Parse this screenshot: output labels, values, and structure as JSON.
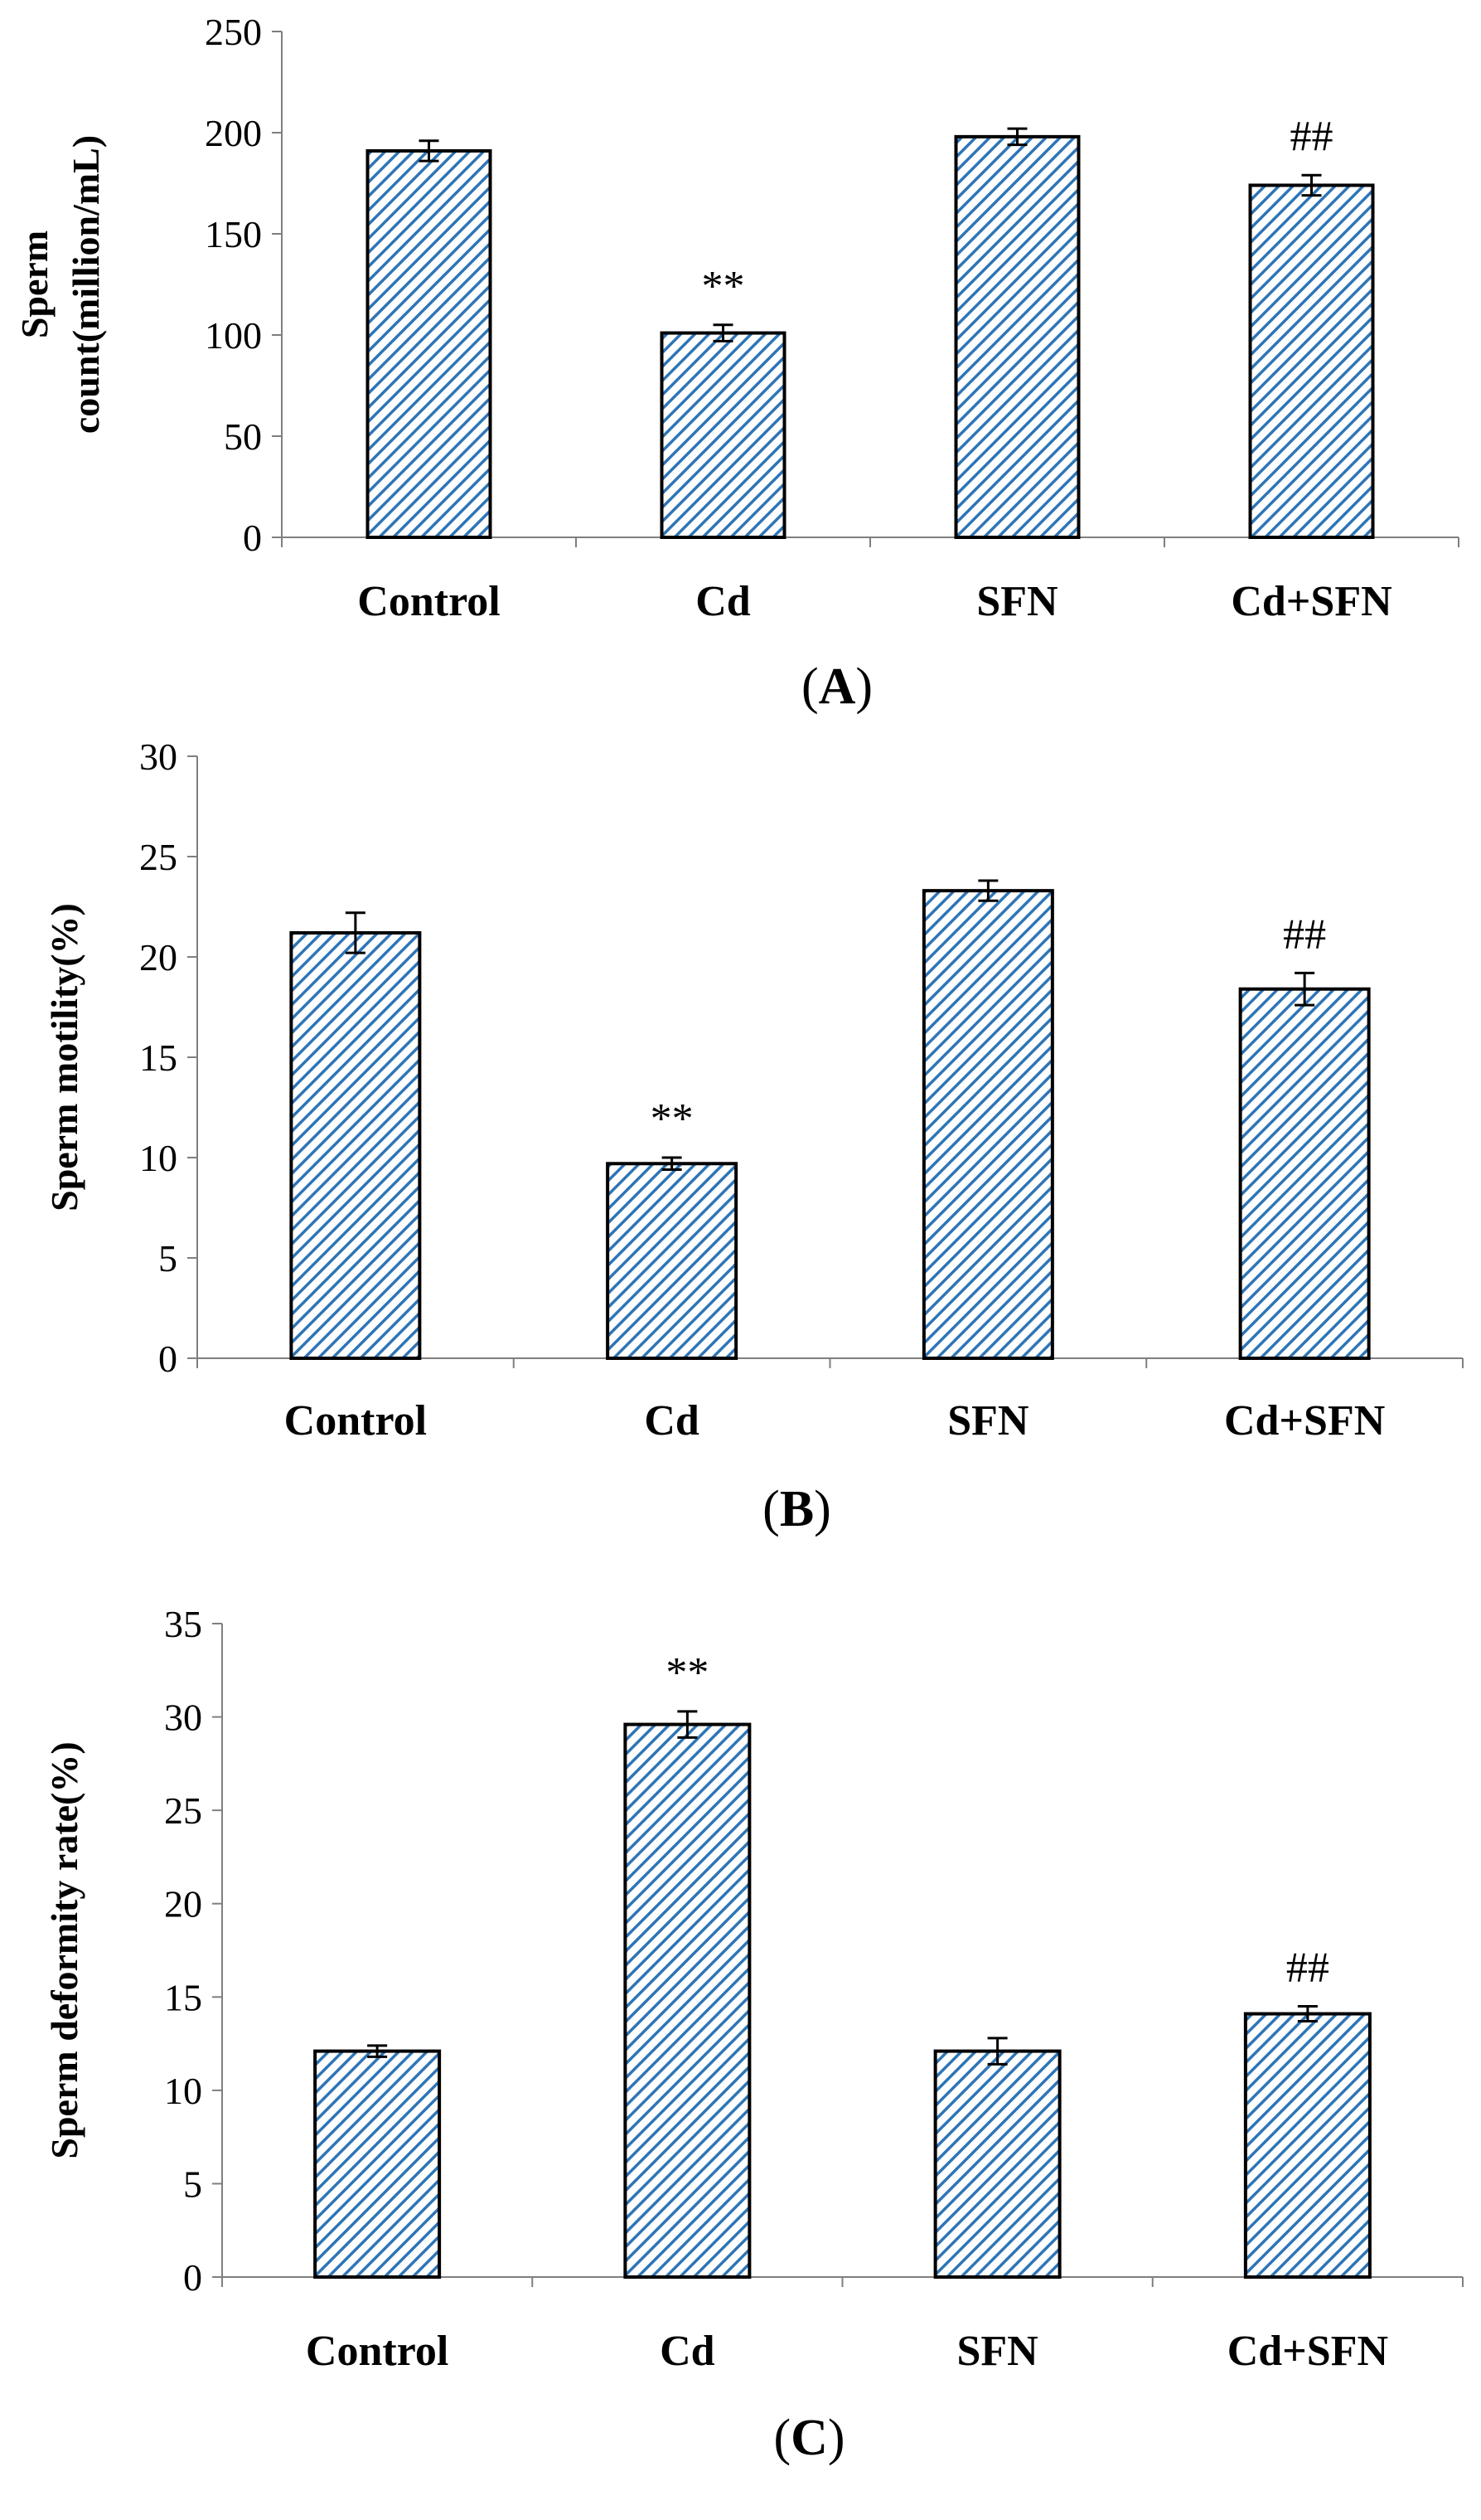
{
  "colors": {
    "bar_hatch": "#2e75b6",
    "bar_fill": "#ffffff",
    "bar_edge": "#000000",
    "axis": "#7f7f7f"
  },
  "chart_data": [
    {
      "type": "bar",
      "panel": "A",
      "categories": [
        "Control",
        "Cd",
        "SFN",
        "Cd+SFN"
      ],
      "values": [
        191,
        101,
        198,
        174
      ],
      "errors": [
        5,
        4,
        4,
        5
      ],
      "significance": [
        "",
        "**",
        "",
        "##"
      ],
      "ylabel_lines": [
        "Sperm",
        "count(million/mL)"
      ],
      "ylim": [
        0,
        250
      ],
      "yticks": [
        0,
        50,
        100,
        150,
        200,
        250
      ]
    },
    {
      "type": "bar",
      "panel": "B",
      "categories": [
        "Control",
        "Cd",
        "SFN",
        "Cd+SFN"
      ],
      "values": [
        21.2,
        9.7,
        23.3,
        18.4
      ],
      "errors": [
        1.0,
        0.3,
        0.5,
        0.8
      ],
      "significance": [
        "",
        "**",
        "",
        "##"
      ],
      "ylabel_lines": [
        "Sperm motility(%)"
      ],
      "ylim": [
        0,
        30
      ],
      "yticks": [
        0,
        5,
        10,
        15,
        20,
        25,
        30
      ]
    },
    {
      "type": "bar",
      "panel": "C",
      "categories": [
        "Control",
        "Cd",
        "SFN",
        "Cd+SFN"
      ],
      "values": [
        12.1,
        29.6,
        12.1,
        14.1
      ],
      "errors": [
        0.3,
        0.7,
        0.7,
        0.4
      ],
      "significance": [
        "",
        "**",
        "",
        "##"
      ],
      "ylabel_lines": [
        "Sperm deformity rate(%)"
      ],
      "ylim": [
        0,
        35
      ],
      "yticks": [
        0,
        5,
        10,
        15,
        20,
        25,
        30,
        35
      ]
    }
  ]
}
